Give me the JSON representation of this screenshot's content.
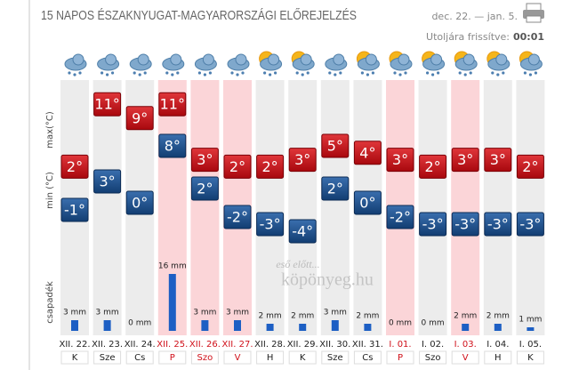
{
  "header": {
    "title": "15 NAPOS ÉSZAKNYUGAT-MAGYARORSZÁGI ELŐREJELZÉS",
    "range": "dec. 22. — jan. 5.",
    "updated_label": "Utoljára frissítve:",
    "updated_time": "00:01"
  },
  "axis_labels": {
    "max": "max(°C)",
    "min": "min (°C)",
    "precip": "csapadék"
  },
  "watermark": {
    "line1": "eső előtt...",
    "line2": "köpönyeg.hu"
  },
  "days": [
    {
      "date": "XII. 22.",
      "day": "K",
      "max": 2,
      "max_label": "2°",
      "min": -1,
      "min_label": "-1°",
      "precip": 3,
      "precip_label": "3 mm",
      "holiday": false
    },
    {
      "date": "XII. 23.",
      "day": "Sze",
      "max": 11,
      "max_label": "11°",
      "min": 3,
      "min_label": "3°",
      "precip": 3,
      "precip_label": "3 mm",
      "holiday": false
    },
    {
      "date": "XII. 24.",
      "day": "Cs",
      "max": 9,
      "max_label": "9°",
      "min": 0,
      "min_label": "0°",
      "precip": 0,
      "precip_label": "0 mm",
      "holiday": false
    },
    {
      "date": "XII. 25.",
      "day": "P",
      "max": 11,
      "max_label": "11°",
      "min": 8,
      "min_label": "8°",
      "precip": 16,
      "precip_label": "16 mm",
      "holiday": true
    },
    {
      "date": "XII. 26.",
      "day": "Szo",
      "max": 3,
      "max_label": "3°",
      "min": 2,
      "min_label": "2°",
      "precip": 3,
      "precip_label": "3 mm",
      "holiday": true
    },
    {
      "date": "XII. 27.",
      "day": "V",
      "max": 2,
      "max_label": "2°",
      "min": -2,
      "min_label": "-2°",
      "precip": 3,
      "precip_label": "3 mm",
      "holiday": true
    },
    {
      "date": "XII. 28.",
      "day": "H",
      "max": 2,
      "max_label": "2°",
      "min": -3,
      "min_label": "-3°",
      "precip": 2,
      "precip_label": "2 mm",
      "holiday": false
    },
    {
      "date": "XII. 29.",
      "day": "K",
      "max": 3,
      "max_label": "3°",
      "min": -4,
      "min_label": "-4°",
      "precip": 2,
      "precip_label": "2 mm",
      "holiday": false
    },
    {
      "date": "XII. 30.",
      "day": "Sze",
      "max": 5,
      "max_label": "5°",
      "min": 2,
      "min_label": "2°",
      "precip": 3,
      "precip_label": "3 mm",
      "holiday": false
    },
    {
      "date": "XII. 31.",
      "day": "Cs",
      "max": 4,
      "max_label": "4°",
      "min": 0,
      "min_label": "0°",
      "precip": 2,
      "precip_label": "2 mm",
      "holiday": false
    },
    {
      "date": "I. 01.",
      "day": "P",
      "max": 3,
      "max_label": "3°",
      "min": -2,
      "min_label": "-2°",
      "precip": 0,
      "precip_label": "0 mm",
      "holiday": true
    },
    {
      "date": "I. 02.",
      "day": "Szo",
      "max": 2,
      "max_label": "2°",
      "min": -3,
      "min_label": "-3°",
      "precip": 0,
      "precip_label": "0 mm",
      "holiday": false
    },
    {
      "date": "I. 03.",
      "day": "V",
      "max": 3,
      "max_label": "3°",
      "min": -3,
      "min_label": "-3°",
      "precip": 2,
      "precip_label": "2 mm",
      "holiday": true
    },
    {
      "date": "I. 04.",
      "day": "H",
      "max": 3,
      "max_label": "3°",
      "min": -3,
      "min_label": "-3°",
      "precip": 2,
      "precip_label": "2 mm",
      "holiday": false
    },
    {
      "date": "I. 05.",
      "day": "K",
      "max": 2,
      "max_label": "2°",
      "min": -3,
      "min_label": "-3°",
      "precip": 1,
      "precip_label": "1 mm",
      "holiday": false
    }
  ]
}
